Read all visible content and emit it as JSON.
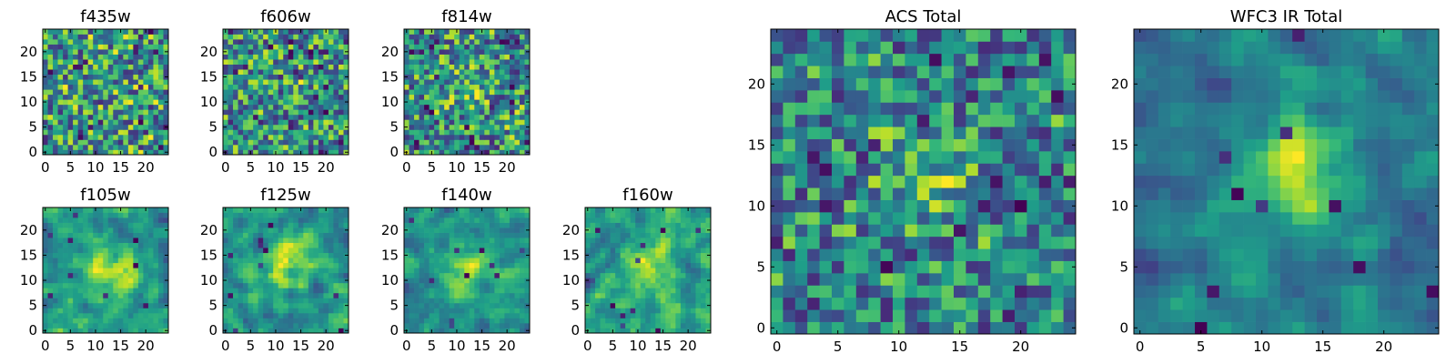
{
  "chart_data": [
    {
      "type": "heatmap",
      "title": "f435w",
      "xticks": [
        "0",
        "5",
        "10",
        "15",
        "20"
      ],
      "yticks": [
        "0",
        "5",
        "10",
        "15",
        "20"
      ],
      "grid_size": [
        25,
        25
      ],
      "colormap": "viridis",
      "noise_seed": 11,
      "blob": 0.0,
      "smooth": 0
    },
    {
      "type": "heatmap",
      "title": "f606w",
      "xticks": [
        "0",
        "5",
        "10",
        "15",
        "20"
      ],
      "yticks": [
        "0",
        "5",
        "10",
        "15",
        "20"
      ],
      "grid_size": [
        25,
        25
      ],
      "colormap": "viridis",
      "noise_seed": 23,
      "blob": 0.15,
      "smooth": 0
    },
    {
      "type": "heatmap",
      "title": "f814w",
      "xticks": [
        "0",
        "5",
        "10",
        "15",
        "20"
      ],
      "yticks": [
        "0",
        "5",
        "10",
        "15",
        "20"
      ],
      "grid_size": [
        25,
        25
      ],
      "colormap": "viridis",
      "noise_seed": 37,
      "blob": 0.2,
      "smooth": 0
    },
    {
      "type": "heatmap",
      "title": "f105w",
      "xticks": [
        "0",
        "5",
        "10",
        "15",
        "20"
      ],
      "yticks": [
        "0",
        "5",
        "10",
        "15",
        "20"
      ],
      "grid_size": [
        25,
        25
      ],
      "colormap": "viridis",
      "noise_seed": 41,
      "blob": 0.35,
      "smooth": 1
    },
    {
      "type": "heatmap",
      "title": "f125w",
      "xticks": [
        "0",
        "5",
        "10",
        "15",
        "20"
      ],
      "yticks": [
        "0",
        "5",
        "10",
        "15",
        "20"
      ],
      "grid_size": [
        25,
        25
      ],
      "colormap": "viridis",
      "noise_seed": 53,
      "blob": 0.3,
      "smooth": 1
    },
    {
      "type": "heatmap",
      "title": "f140w",
      "xticks": [
        "0",
        "5",
        "10",
        "15",
        "20"
      ],
      "yticks": [
        "0",
        "5",
        "10",
        "15",
        "20"
      ],
      "grid_size": [
        25,
        25
      ],
      "colormap": "viridis",
      "noise_seed": 67,
      "blob": 0.35,
      "smooth": 1
    },
    {
      "type": "heatmap",
      "title": "f160w",
      "xticks": [
        "0",
        "5",
        "10",
        "15",
        "20"
      ],
      "yticks": [
        "0",
        "5",
        "10",
        "15",
        "20"
      ],
      "grid_size": [
        25,
        25
      ],
      "colormap": "viridis",
      "noise_seed": 71,
      "blob": 0.3,
      "smooth": 1
    },
    {
      "type": "heatmap",
      "title": "ACS Total",
      "xticks": [
        "0",
        "5",
        "10",
        "15",
        "20"
      ],
      "yticks": [
        "0",
        "5",
        "10",
        "15",
        "20"
      ],
      "grid_size": [
        25,
        25
      ],
      "colormap": "viridis",
      "noise_seed": 83,
      "blob": 0.25,
      "smooth": 0
    },
    {
      "type": "heatmap",
      "title": "WFC3 IR Total",
      "xticks": [
        "0",
        "5",
        "10",
        "15",
        "20"
      ],
      "yticks": [
        "0",
        "5",
        "10",
        "15",
        "20"
      ],
      "grid_size": [
        25,
        25
      ],
      "colormap": "viridis",
      "noise_seed": 97,
      "blob": 0.55,
      "smooth": 1
    }
  ]
}
